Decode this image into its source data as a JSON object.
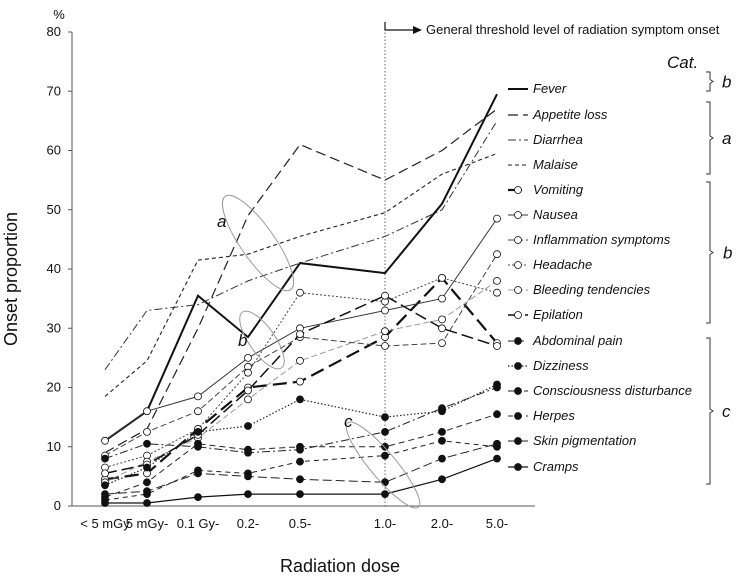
{
  "chart_data": {
    "type": "line",
    "ylabel": "Onset proportion",
    "yunit": "%",
    "xlabel": "Radiation dose",
    "ylim": [
      0,
      80
    ],
    "yticks": [
      0,
      10,
      20,
      30,
      40,
      50,
      60,
      70,
      80
    ],
    "categories": [
      "< 5 mGy",
      "5 mGy-",
      "0.1 Gy-",
      "0.2-",
      "0.5-",
      "1.0-",
      "2.0-",
      "5.0-"
    ],
    "threshold": {
      "label": "General threshold level of radiation symptom onset",
      "category": "1.0-"
    },
    "series": [
      {
        "name": "Fever",
        "values": [
          11,
          16,
          35.5,
          28.5,
          41,
          39.3,
          51,
          69.5
        ]
      },
      {
        "name": "Appetite loss",
        "values": [
          9,
          13,
          30,
          49,
          61,
          55,
          60,
          67
        ]
      },
      {
        "name": "Diarrhea",
        "values": [
          23,
          33,
          34,
          38,
          41,
          45.5,
          50,
          65
        ]
      },
      {
        "name": "Malaise",
        "values": [
          18.5,
          24.5,
          41.5,
          42.5,
          45.5,
          49.5,
          56,
          59.5
        ]
      },
      {
        "name": "Vomiting",
        "values": [
          4.5,
          5.5,
          13,
          20,
          21,
          28.5,
          38.5,
          27.5
        ]
      },
      {
        "name": "Nausea",
        "values": [
          11,
          16,
          18.5,
          25,
          30,
          33,
          35,
          48.5
        ]
      },
      {
        "name": "Inflammation symptoms",
        "values": [
          8.5,
          12.5,
          16,
          23.5,
          28.5,
          27,
          27.5,
          42.5
        ]
      },
      {
        "name": "Headache",
        "values": [
          6.5,
          8.5,
          13,
          22.5,
          36,
          34.5,
          38.5,
          36
        ]
      },
      {
        "name": "Bleeding tendencies",
        "values": [
          4,
          7.5,
          11.5,
          18,
          24.5,
          29.5,
          31.5,
          38
        ]
      },
      {
        "name": "Epilation",
        "values": [
          5.5,
          7,
          12,
          19.5,
          29,
          35.5,
          30,
          27
        ]
      },
      {
        "name": "Abdominal pain",
        "values": [
          1.5,
          4,
          10.5,
          9.5,
          10,
          10,
          12.5,
          15.5
        ]
      },
      {
        "name": "Dizziness",
        "values": [
          3.5,
          6.5,
          12.5,
          13.5,
          18,
          15,
          16,
          20.5
        ]
      },
      {
        "name": "Consciousness disturbance",
        "values": [
          8,
          10.5,
          10,
          9,
          9.5,
          12.5,
          16.5,
          20
        ]
      },
      {
        "name": "Herpes",
        "values": [
          1,
          2,
          6,
          5.5,
          7.5,
          8.5,
          11,
          10
        ]
      },
      {
        "name": "Skin pigmentation",
        "values": [
          2,
          2.5,
          5.5,
          5,
          4.5,
          4,
          8,
          10.5
        ]
      },
      {
        "name": "Cramps",
        "values": [
          0.5,
          0.5,
          1.5,
          2,
          2,
          2,
          4.5,
          8
        ]
      }
    ],
    "annotations": [
      "a",
      "b",
      "c"
    ],
    "category_groups": {
      "title": "Cat.",
      "groups": [
        {
          "label": "b",
          "members": [
            "Fever"
          ]
        },
        {
          "label": "a",
          "members": [
            "Appetite loss",
            "Diarrhea",
            "Malaise"
          ]
        },
        {
          "label": "b",
          "members": [
            "Vomiting",
            "Nausea",
            "Inflammation symptoms",
            "Headache",
            "Bleeding tendencies",
            "Epilation"
          ]
        },
        {
          "label": "c",
          "members": [
            "Abdominal pain",
            "Dizziness",
            "Consciousness disturbance",
            "Herpes",
            "Skin pigmentation",
            "Cramps"
          ]
        }
      ]
    }
  }
}
